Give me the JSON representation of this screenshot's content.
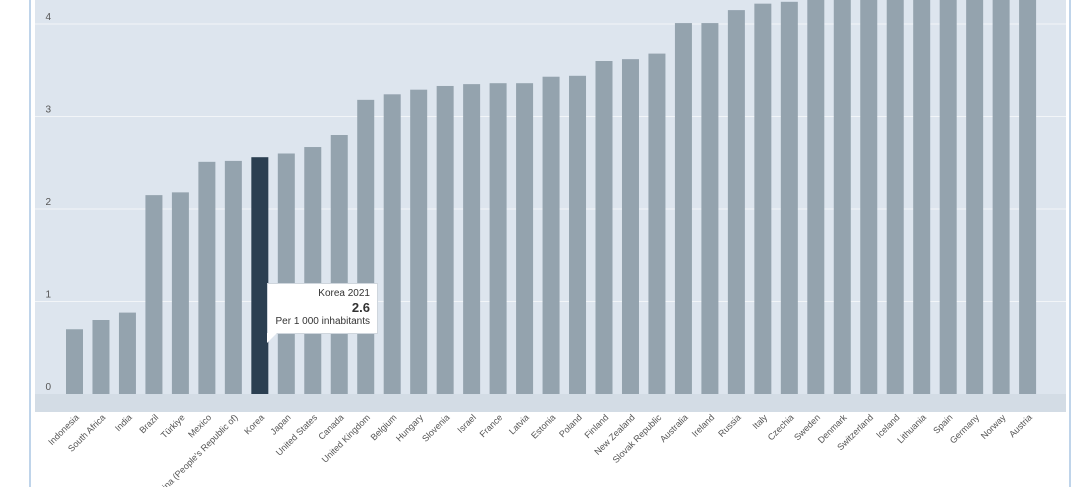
{
  "chart_data": {
    "type": "bar",
    "categories": [
      "Indonesia",
      "South Africa",
      "India",
      "Brazil",
      "Türkiye",
      "Mexico",
      "China (People's Republic of)",
      "Korea",
      "Japan",
      "United States",
      "Canada",
      "United Kingdom",
      "Belgium",
      "Hungary",
      "Slovenia",
      "Israel",
      "France",
      "Latvia",
      "Estonia",
      "Poland",
      "Finland",
      "New Zealand",
      "Slovak Republic",
      "Australia",
      "Ireland",
      "Russia",
      "Italy",
      "Czechia",
      "Sweden",
      "Denmark",
      "Switzerland",
      "Iceland",
      "Lithuania",
      "Spain",
      "Germany",
      "Norway",
      "Austria"
    ],
    "values": [
      0.7,
      0.8,
      0.88,
      2.15,
      2.18,
      2.51,
      2.52,
      2.56,
      2.6,
      2.67,
      2.8,
      3.18,
      3.24,
      3.29,
      3.33,
      3.35,
      3.36,
      3.36,
      3.43,
      3.44,
      3.6,
      3.62,
      3.68,
      4.01,
      4.01,
      4.15,
      4.22,
      4.24,
      4.3,
      4.3,
      4.3,
      4.3,
      4.3,
      4.3,
      4.3,
      4.3,
      4.3
    ],
    "highlight_index": 7,
    "yticks": [
      0,
      1,
      2,
      3,
      4
    ],
    "ylim": [
      -0.2,
      4.3
    ],
    "xlabel": "",
    "ylabel": "",
    "grid": true,
    "colors": {
      "bar": "#94a3ae",
      "highlight": "#2b3f51",
      "plot_bg": "#dde5ee",
      "axis_band": "#d3dce5",
      "grid": "#f2f5f8",
      "text": "#555555"
    }
  },
  "tooltip": {
    "title": "Korea 2021",
    "value": "2.6",
    "unit": "Per 1 000 inhabitants"
  }
}
